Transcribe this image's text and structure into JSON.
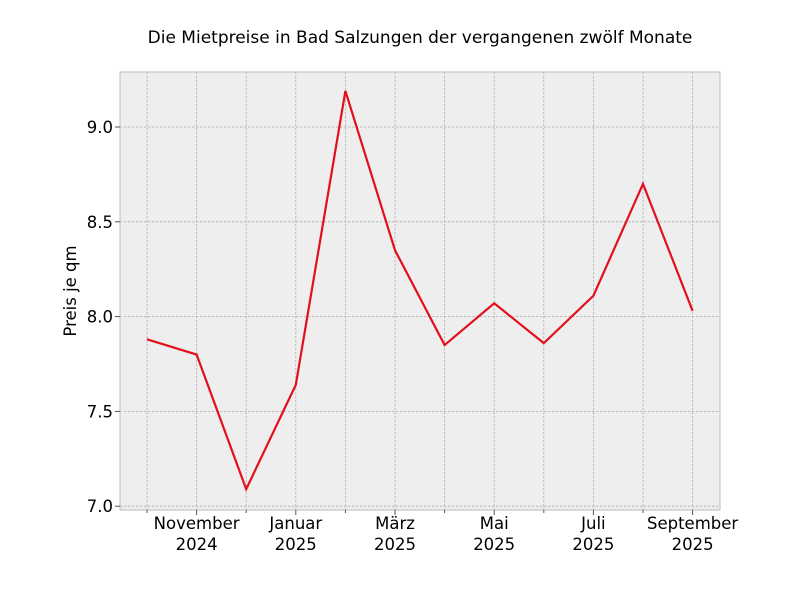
{
  "chart_data": {
    "type": "line",
    "title": "Die Mietpreise in Bad Salzungen der vergangenen zwölf Monate",
    "xlabel": "",
    "ylabel": "Preis je qm",
    "x": [
      "2024-10",
      "2024-11",
      "2024-12",
      "2025-01",
      "2025-02",
      "2025-03",
      "2025-04",
      "2025-05",
      "2025-06",
      "2025-07",
      "2025-08",
      "2025-09"
    ],
    "series": [
      {
        "color": "#e3101c",
        "values": [
          7.88,
          7.8,
          7.09,
          7.64,
          9.19,
          8.35,
          7.85,
          8.07,
          7.86,
          8.11,
          8.7,
          8.03
        ]
      }
    ],
    "ylim": [
      6.98,
      9.29
    ],
    "y_ticks": [
      7.0,
      7.5,
      8.0,
      8.5,
      9.0
    ],
    "y_tick_labels": [
      "7.0",
      "7.5",
      "8.0",
      "8.5",
      "9.0"
    ],
    "x_major_ticks": [
      {
        "index": 1,
        "line1": "November",
        "line2": "2024"
      },
      {
        "index": 3,
        "line1": "Januar",
        "line2": "2025"
      },
      {
        "index": 5,
        "line1": "März",
        "line2": "2025"
      },
      {
        "index": 7,
        "line1": "Mai",
        "line2": "2025"
      },
      {
        "index": 9,
        "line1": "Juli",
        "line2": "2025"
      },
      {
        "index": 11,
        "line1": "September",
        "line2": "2025"
      }
    ],
    "grid": true,
    "background_color": "#eeeeee",
    "grid_color": "#b0b0b0"
  }
}
